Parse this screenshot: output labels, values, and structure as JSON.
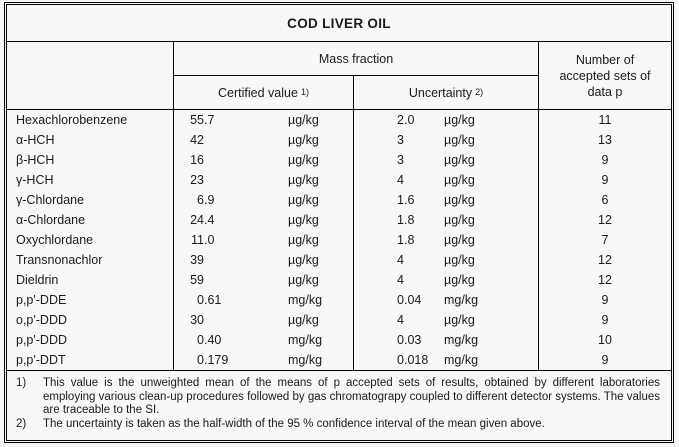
{
  "title": "COD LIVER OIL",
  "header": {
    "mass_fraction": "Mass fraction",
    "certified_value": "Certified value",
    "certified_sup": "1)",
    "uncertainty": "Uncertainty",
    "uncertainty_sup": "2)",
    "accepted_lines": [
      "Number of",
      "accepted sets of",
      "data p"
    ]
  },
  "rows": [
    {
      "name": "Hexachlorobenzene",
      "value": "55.7",
      "unit": "µg/kg",
      "uncertainty": "2.0",
      "u_unit": "µg/kg",
      "sets": "11"
    },
    {
      "name": "α-HCH",
      "value": "42",
      "unit": "µg/kg",
      "uncertainty": "3",
      "u_unit": "µg/kg",
      "sets": "13"
    },
    {
      "name": "β-HCH",
      "value": "16",
      "unit": "µg/kg",
      "uncertainty": "3",
      "u_unit": "µg/kg",
      "sets": "9"
    },
    {
      "name": "γ-HCH",
      "value": "23",
      "unit": "µg/kg",
      "uncertainty": "4",
      "u_unit": "µg/kg",
      "sets": "9"
    },
    {
      "name": "γ-Chlordane",
      "value": "6.9",
      "unit": "µg/kg",
      "uncertainty": "1.6",
      "u_unit": "µg/kg",
      "sets": "6"
    },
    {
      "name": "α-Chlordane",
      "value": "24.4",
      "unit": "µg/kg",
      "uncertainty": "1.8",
      "u_unit": "µg/kg",
      "sets": "12"
    },
    {
      "name": "Oxychlordane",
      "value": "11.0",
      "unit": "µg/kg",
      "uncertainty": "1.8",
      "u_unit": "µg/kg",
      "sets": "7"
    },
    {
      "name": "Transnonachlor",
      "value": "39",
      "unit": "µg/kg",
      "uncertainty": "4",
      "u_unit": "µg/kg",
      "sets": "12"
    },
    {
      "name": "Dieldrin",
      "value": "59",
      "unit": "µg/kg",
      "uncertainty": "4",
      "u_unit": "µg/kg",
      "sets": "12"
    },
    {
      "name": "p,p'-DDE",
      "value": "0.61",
      "unit": "mg/kg",
      "uncertainty": "0.04",
      "u_unit": "mg/kg",
      "sets": "9"
    },
    {
      "name": "o,p'-DDD",
      "value": "30",
      "unit": "µg/kg",
      "uncertainty": "4",
      "u_unit": "µg/kg",
      "sets": "9"
    },
    {
      "name": "p,p'-DDD",
      "value": "0.40",
      "unit": "mg/kg",
      "uncertainty": "0.03",
      "u_unit": "mg/kg",
      "sets": "10"
    },
    {
      "name": "p,p'-DDT",
      "value": "0.179",
      "unit": "mg/kg",
      "uncertainty": "0.018",
      "u_unit": "mg/kg",
      "sets": "9"
    }
  ],
  "footnotes": [
    {
      "marker": "1)",
      "text": "This value is the unweighted mean of the means of p accepted sets of results, obtained by different laboratories employing various clean-up procedures followed by gas chromatograpy coupled to different detector systems. The values are traceable to the SI."
    },
    {
      "marker": "2)",
      "text": "The uncertainty is taken as the half-width of the 95 % confidence interval of the mean given above."
    }
  ],
  "colors": {
    "background": "#f8f8f8",
    "border": "#000000",
    "text": "#1a1a1a"
  }
}
